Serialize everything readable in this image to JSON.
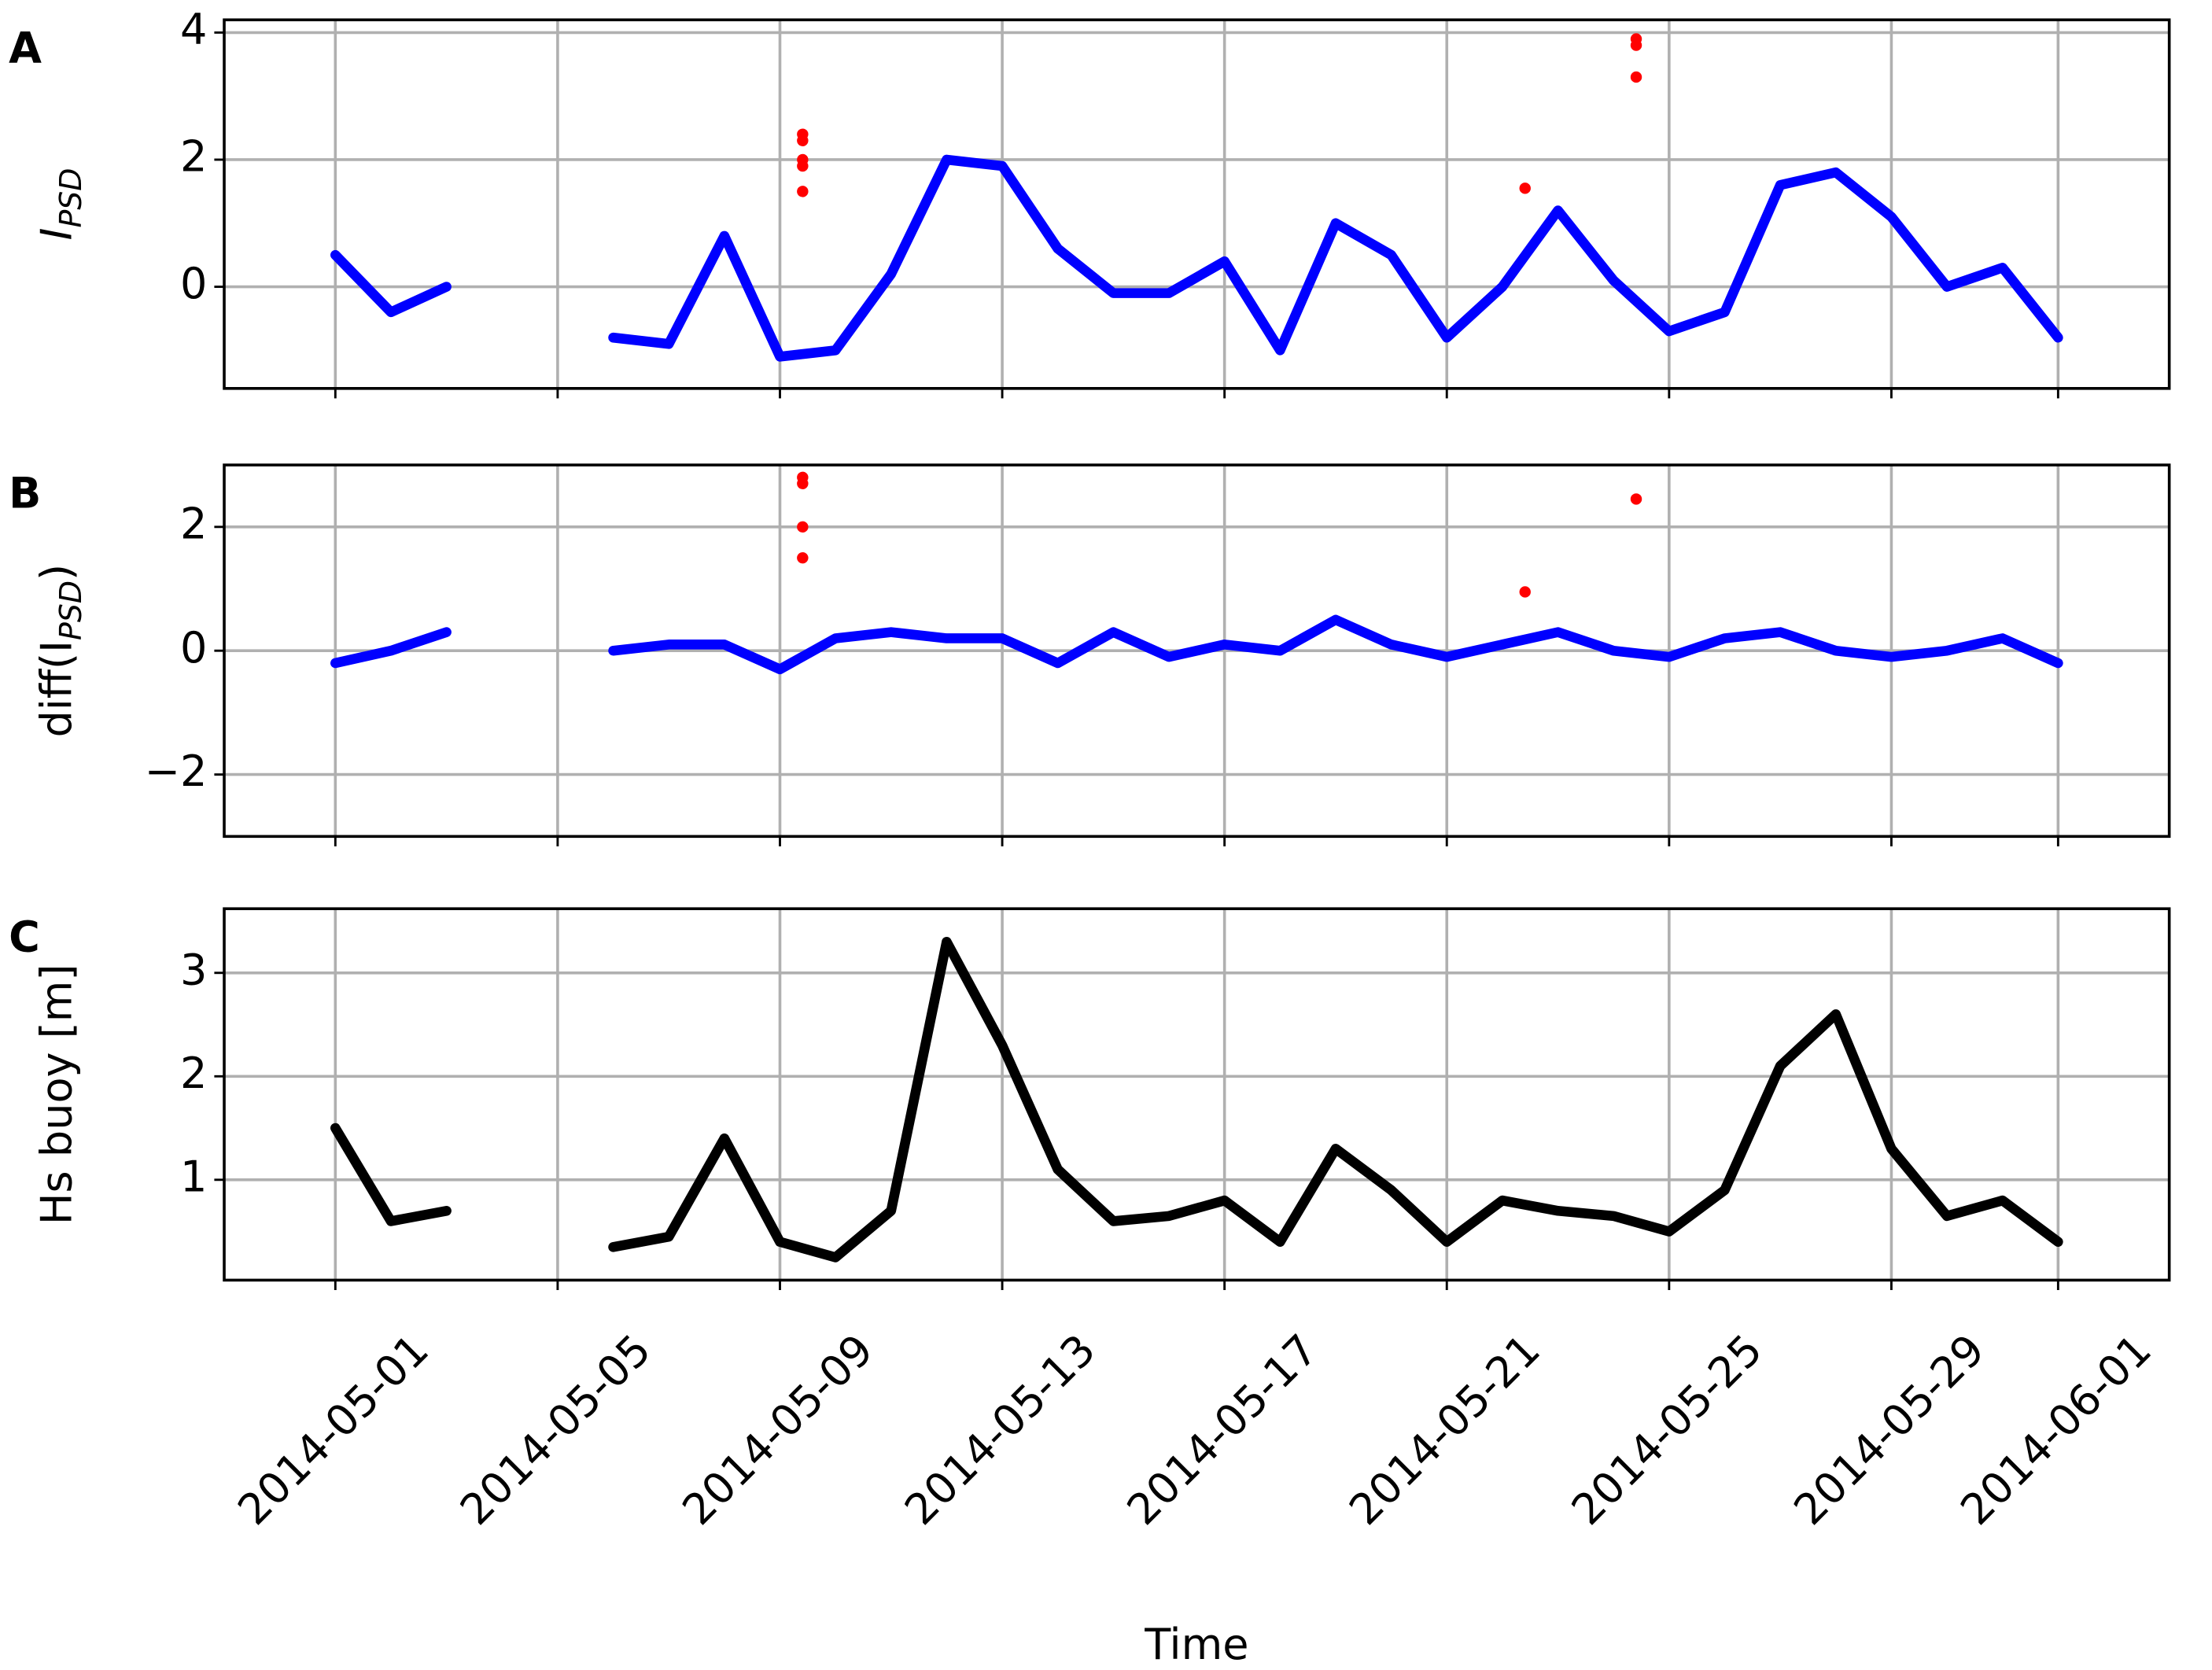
{
  "chart_data": [
    {
      "type": "scatter",
      "panel": "A",
      "ylabel": [
        "I",
        "PSD"
      ],
      "x": [
        "2014-05-01",
        "2014-05-02",
        "2014-05-03",
        "2014-05-04",
        "2014-05-05",
        "2014-05-06",
        "2014-05-07",
        "2014-05-08",
        "2014-05-09",
        "2014-05-10",
        "2014-05-11",
        "2014-05-12",
        "2014-05-13",
        "2014-05-14",
        "2014-05-15",
        "2014-05-16",
        "2014-05-17",
        "2014-05-18",
        "2014-05-19",
        "2014-05-20",
        "2014-05-21",
        "2014-05-22",
        "2014-05-23",
        "2014-05-24",
        "2014-05-25",
        "2014-05-26",
        "2014-05-27",
        "2014-05-28",
        "2014-05-29",
        "2014-05-30",
        "2014-05-31",
        "2014-06-01"
      ],
      "values": [
        0.5,
        -0.4,
        0.0,
        null,
        null,
        -0.8,
        -0.9,
        0.8,
        -1.1,
        -1.0,
        0.2,
        2.0,
        1.9,
        0.6,
        -0.1,
        -0.1,
        0.4,
        -1.0,
        1.0,
        0.5,
        -0.8,
        0.0,
        1.2,
        0.1,
        -0.7,
        -0.4,
        1.6,
        1.8,
        1.1,
        0.0,
        0.3,
        -0.8
      ],
      "color": "#0000ff",
      "outliers": {
        "x": [
          "2014-05-09",
          "2014-05-09",
          "2014-05-09",
          "2014-05-09",
          "2014-05-09",
          "2014-05-22",
          "2014-05-24",
          "2014-05-24",
          "2014-05-24"
        ],
        "values": [
          2.4,
          2.3,
          2.0,
          1.9,
          1.5,
          1.55,
          3.9,
          3.8,
          3.3
        ],
        "color": "#ff0000"
      },
      "xlim": [
        "2014-04-29",
        "2014-06-03"
      ],
      "xticks": [
        "2014-05-01",
        "2014-05-05",
        "2014-05-09",
        "2014-05-13",
        "2014-05-17",
        "2014-05-21",
        "2014-05-25",
        "2014-05-29",
        "2014-06-01"
      ],
      "ylim": [
        -1.6,
        4.2
      ],
      "yticks": [
        0,
        2,
        4
      ],
      "grid": true
    },
    {
      "type": "scatter",
      "panel": "B",
      "ylabel": [
        "diff(I",
        "PSD",
        ")"
      ],
      "x": [
        "2014-05-01",
        "2014-05-02",
        "2014-05-03",
        "2014-05-04",
        "2014-05-05",
        "2014-05-06",
        "2014-05-07",
        "2014-05-08",
        "2014-05-09",
        "2014-05-10",
        "2014-05-11",
        "2014-05-12",
        "2014-05-13",
        "2014-05-14",
        "2014-05-15",
        "2014-05-16",
        "2014-05-17",
        "2014-05-18",
        "2014-05-19",
        "2014-05-20",
        "2014-05-21",
        "2014-05-22",
        "2014-05-23",
        "2014-05-24",
        "2014-05-25",
        "2014-05-26",
        "2014-05-27",
        "2014-05-28",
        "2014-05-29",
        "2014-05-30",
        "2014-05-31",
        "2014-06-01"
      ],
      "values": [
        -0.2,
        0.0,
        0.3,
        null,
        null,
        0.0,
        0.1,
        0.1,
        -0.3,
        0.2,
        0.3,
        0.2,
        0.2,
        -0.2,
        0.3,
        -0.1,
        0.1,
        0.0,
        0.5,
        0.1,
        -0.1,
        0.1,
        0.3,
        0.0,
        -0.1,
        0.2,
        0.3,
        0.0,
        -0.1,
        0.0,
        0.2,
        -0.2
      ],
      "color": "#0000ff",
      "outliers": {
        "x": [
          "2014-05-09",
          "2014-05-09",
          "2014-05-09",
          "2014-05-09",
          "2014-05-22",
          "2014-05-24"
        ],
        "values": [
          2.8,
          2.7,
          2.0,
          1.5,
          0.95,
          2.45
        ],
        "color": "#ff0000"
      },
      "xlim": [
        "2014-04-29",
        "2014-06-03"
      ],
      "xticks": [
        "2014-05-01",
        "2014-05-05",
        "2014-05-09",
        "2014-05-13",
        "2014-05-17",
        "2014-05-21",
        "2014-05-25",
        "2014-05-29",
        "2014-06-01"
      ],
      "ylim": [
        -3,
        3
      ],
      "yticks": [
        {
          "value": -2,
          "label": "−2"
        },
        0,
        2
      ],
      "grid": true
    },
    {
      "type": "scatter",
      "panel": "C",
      "ylabel": [
        "Hs buoy [m]"
      ],
      "xlabel": "Time",
      "x": [
        "2014-05-01",
        "2014-05-02",
        "2014-05-03",
        "2014-05-04",
        "2014-05-05",
        "2014-05-06",
        "2014-05-07",
        "2014-05-08",
        "2014-05-09",
        "2014-05-10",
        "2014-05-11",
        "2014-05-12",
        "2014-05-13",
        "2014-05-14",
        "2014-05-15",
        "2014-05-16",
        "2014-05-17",
        "2014-05-18",
        "2014-05-19",
        "2014-05-20",
        "2014-05-21",
        "2014-05-22",
        "2014-05-23",
        "2014-05-24",
        "2014-05-25",
        "2014-05-26",
        "2014-05-27",
        "2014-05-28",
        "2014-05-29",
        "2014-05-30",
        "2014-05-31",
        "2014-06-01"
      ],
      "values": [
        1.5,
        0.6,
        0.7,
        null,
        null,
        0.35,
        0.45,
        1.4,
        0.4,
        0.25,
        0.7,
        3.3,
        2.3,
        1.1,
        0.6,
        0.65,
        0.8,
        0.4,
        1.3,
        0.9,
        0.4,
        0.8,
        0.7,
        0.65,
        0.5,
        0.9,
        2.1,
        2.6,
        1.3,
        0.65,
        0.8,
        0.4
      ],
      "color": "#000000",
      "xlim": [
        "2014-04-29",
        "2014-06-03"
      ],
      "xticks": [
        "2014-05-01",
        "2014-05-05",
        "2014-05-09",
        "2014-05-13",
        "2014-05-17",
        "2014-05-21",
        "2014-05-25",
        "2014-05-29",
        "2014-06-01"
      ],
      "ylim": [
        0.03,
        3.62
      ],
      "yticks": [
        1,
        2,
        3
      ],
      "grid": true
    }
  ]
}
